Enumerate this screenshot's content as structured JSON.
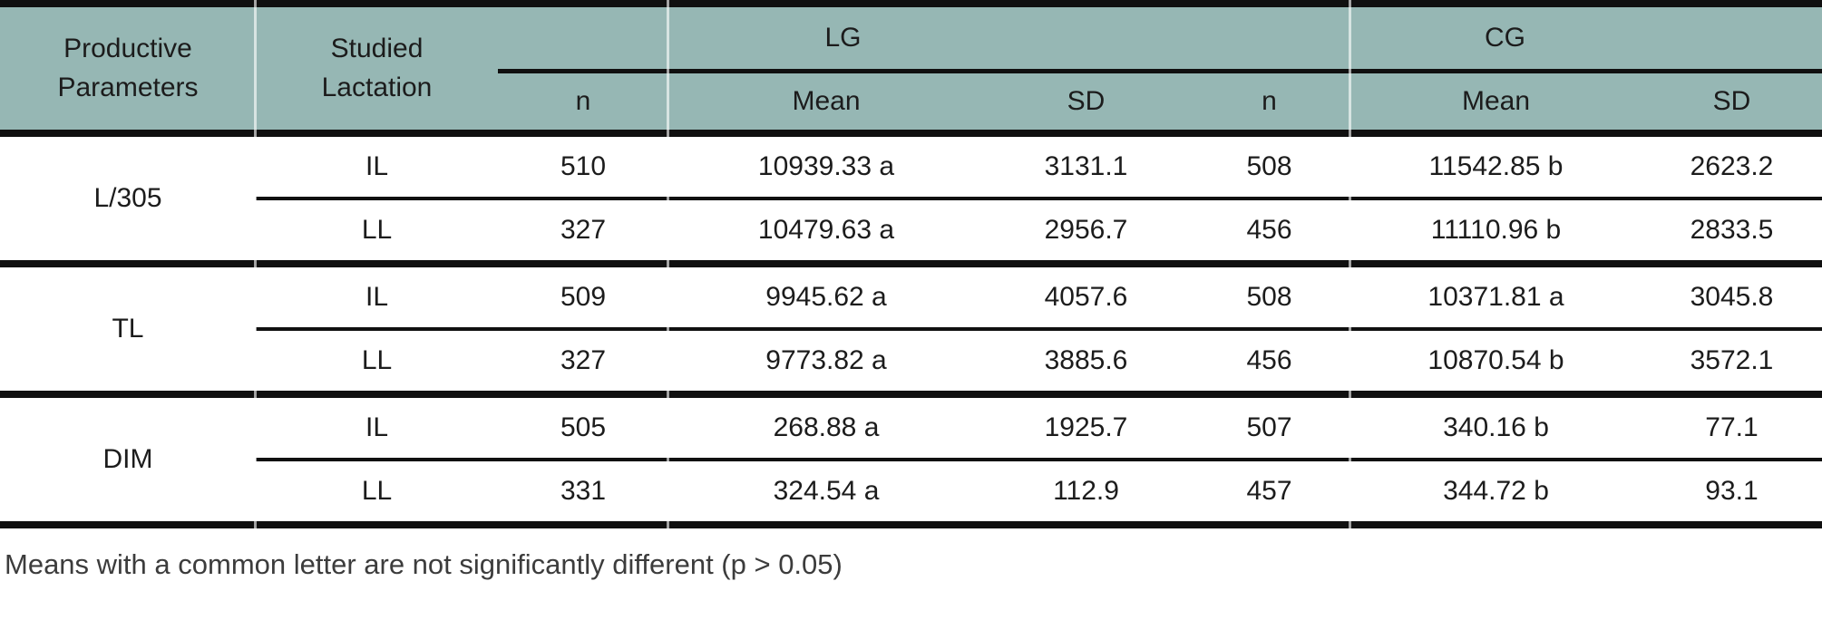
{
  "table": {
    "header": {
      "col1": "Productive\nParameters",
      "col2": "Studied\nLactation",
      "group_lg": "LG",
      "group_cg": "CG",
      "sub": [
        "n",
        "Mean",
        "SD",
        "n",
        "Mean",
        "SD"
      ]
    },
    "groups": [
      {
        "param": "L/305",
        "rows": [
          {
            "label": "IL",
            "lg": {
              "n": "510",
              "mean": "10939.33 a",
              "sd": "3131.1"
            },
            "cg": {
              "n": "508",
              "mean": "11542.85 b",
              "sd": "2623.2"
            }
          },
          {
            "label": "LL",
            "lg": {
              "n": "327",
              "mean": "10479.63 a",
              "sd": "2956.7"
            },
            "cg": {
              "n": "456",
              "mean": "11110.96 b",
              "sd": "2833.5"
            }
          }
        ]
      },
      {
        "param": "TL",
        "rows": [
          {
            "label": "IL",
            "lg": {
              "n": "509",
              "mean": "9945.62 a",
              "sd": "4057.6"
            },
            "cg": {
              "n": "508",
              "mean": "10371.81 a",
              "sd": "3045.8"
            }
          },
          {
            "label": "LL",
            "lg": {
              "n": "327",
              "mean": "9773.82 a",
              "sd": "3885.6"
            },
            "cg": {
              "n": "456",
              "mean": "10870.54 b",
              "sd": "3572.1"
            }
          }
        ]
      },
      {
        "param": "DIM",
        "rows": [
          {
            "label": "IL",
            "lg": {
              "n": "505",
              "mean": "268.88 a",
              "sd": "1925.7"
            },
            "cg": {
              "n": "507",
              "mean": "340.16 b",
              "sd": "77.1"
            }
          },
          {
            "label": "LL",
            "lg": {
              "n": "331",
              "mean": "324.54 a",
              "sd": "112.9"
            },
            "cg": {
              "n": "457",
              "mean": "344.72 b",
              "sd": "93.1"
            }
          }
        ]
      }
    ]
  },
  "footnote": "Means with a common letter are not significantly different (p > 0.05)",
  "colors": {
    "header_bg": "#96b7b4",
    "rule": "#101010",
    "body_text": "#1c1c1c",
    "footnote_text": "#3c3c3c"
  }
}
